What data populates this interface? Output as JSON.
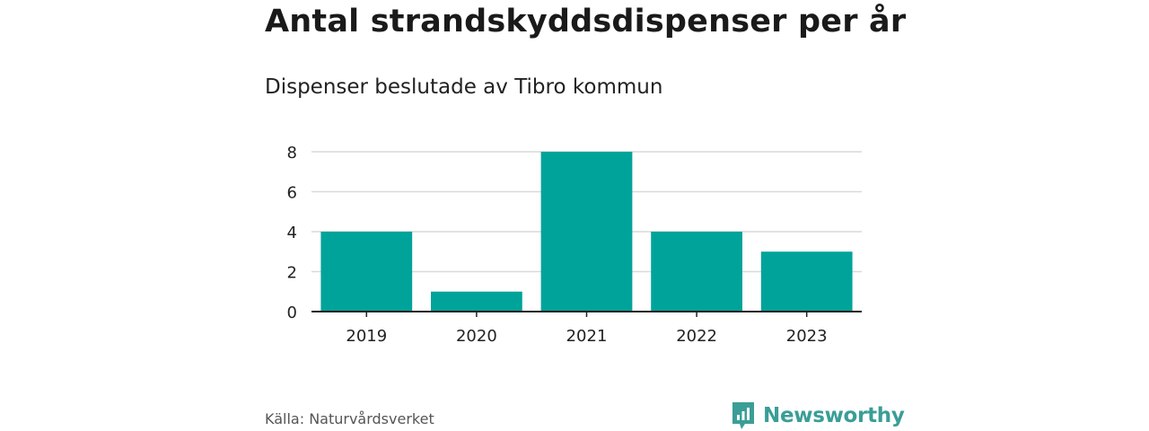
{
  "chart_data": {
    "type": "bar",
    "title": "Antal strandskyddsdispenser per år",
    "subtitle": "Dispenser beslutade av Tibro kommun",
    "categories": [
      "2019",
      "2020",
      "2021",
      "2022",
      "2023"
    ],
    "values": [
      4,
      1,
      8,
      4,
      3
    ],
    "ylim": [
      0,
      8
    ],
    "yticks": [
      0,
      2,
      4,
      6,
      8
    ],
    "xlabel": "",
    "ylabel": "",
    "grid": true,
    "bar_color": "#00a39a"
  },
  "footer": {
    "source": "Källa: Naturvårdsverket",
    "brand": "Newsworthy"
  },
  "colors": {
    "bar": "#00a39a",
    "brand": "#3a9e96",
    "grid": "#d9d9d9",
    "axis": "#222222"
  }
}
